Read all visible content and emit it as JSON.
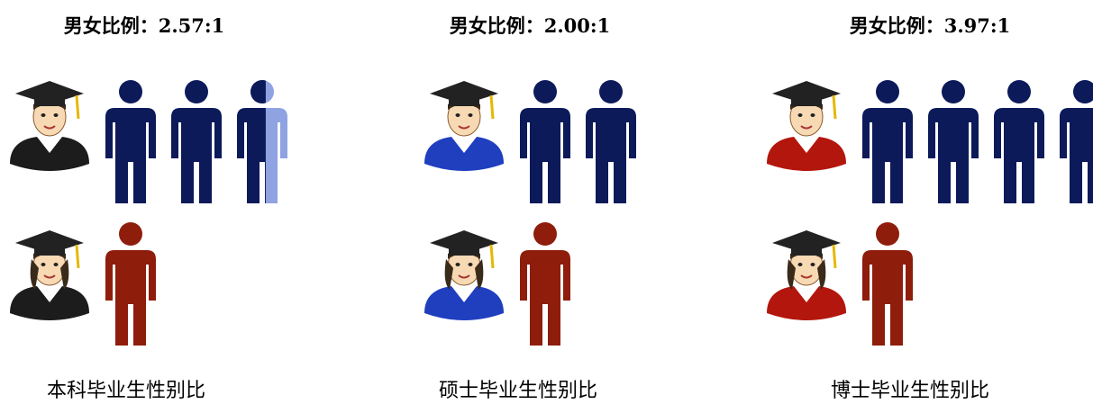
{
  "chart_data": {
    "type": "pictogram",
    "value_label_prefix": "男女比例：",
    "categories": [
      "本科毕业生性别比",
      "硕士毕业生性别比",
      "博士毕业生性别比"
    ],
    "values": [
      2.57,
      2.0,
      3.97
    ],
    "value_labels": [
      "2.57:1",
      "2.00:1",
      "3.97:1"
    ],
    "female_values": [
      1,
      1,
      1
    ],
    "male_color": "#0c1a5a",
    "male_remainder_color": "#8fa2e2",
    "female_color": "#8e1d0b",
    "gown_colors": [
      "#1c1c1c",
      "#1f3fbf",
      "#b3160d"
    ]
  }
}
